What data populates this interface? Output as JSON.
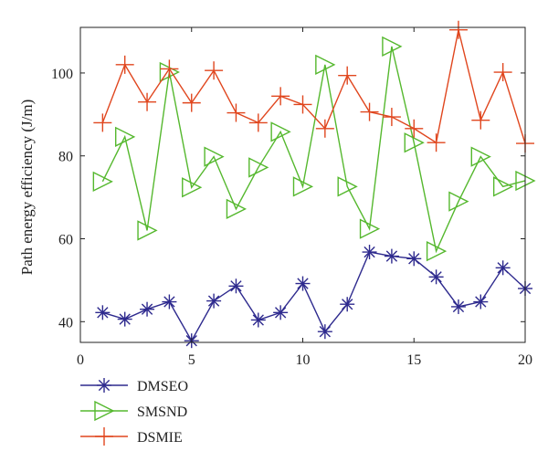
{
  "chart_data": {
    "type": "line",
    "title": "",
    "xlabel": "",
    "ylabel": "Path energy efficiency (J/m)",
    "xlim": [
      0,
      20
    ],
    "ylim": [
      35,
      111
    ],
    "xticks": [
      0,
      5,
      10,
      15,
      20
    ],
    "yticks": [
      40,
      60,
      80,
      100
    ],
    "grid": false,
    "legend_position": "below-left",
    "x": [
      1,
      2,
      3,
      4,
      5,
      6,
      7,
      8,
      9,
      10,
      11,
      12,
      13,
      14,
      15,
      16,
      17,
      18,
      19,
      20
    ],
    "series": [
      {
        "name": "DMSEO",
        "color": "#2e2a8e",
        "marker": "asterisk",
        "values": [
          42.2,
          40.6,
          43.0,
          44.8,
          35.4,
          45.0,
          48.6,
          40.4,
          42.2,
          49.2,
          37.6,
          44.2,
          56.8,
          55.8,
          55.2,
          50.8,
          43.6,
          44.8,
          53.0,
          48.0
        ]
      },
      {
        "name": "SMSND",
        "color": "#55b82e",
        "marker": "triangle-right",
        "values": [
          73.8,
          84.6,
          62.0,
          100.2,
          72.4,
          79.8,
          67.2,
          77.2,
          85.8,
          72.6,
          102.0,
          72.6,
          62.4,
          106.4,
          83.2,
          57.0,
          69.0,
          79.8,
          72.6,
          74.0
        ]
      },
      {
        "name": "DSMIE",
        "color": "#e0461e",
        "marker": "plus",
        "values": [
          88.0,
          102.0,
          93.0,
          101.0,
          92.8,
          100.6,
          90.4,
          88.0,
          94.4,
          92.4,
          86.6,
          99.4,
          90.6,
          89.4,
          86.6,
          83.2,
          110.4,
          88.6,
          100.2,
          83.0
        ]
      }
    ]
  }
}
